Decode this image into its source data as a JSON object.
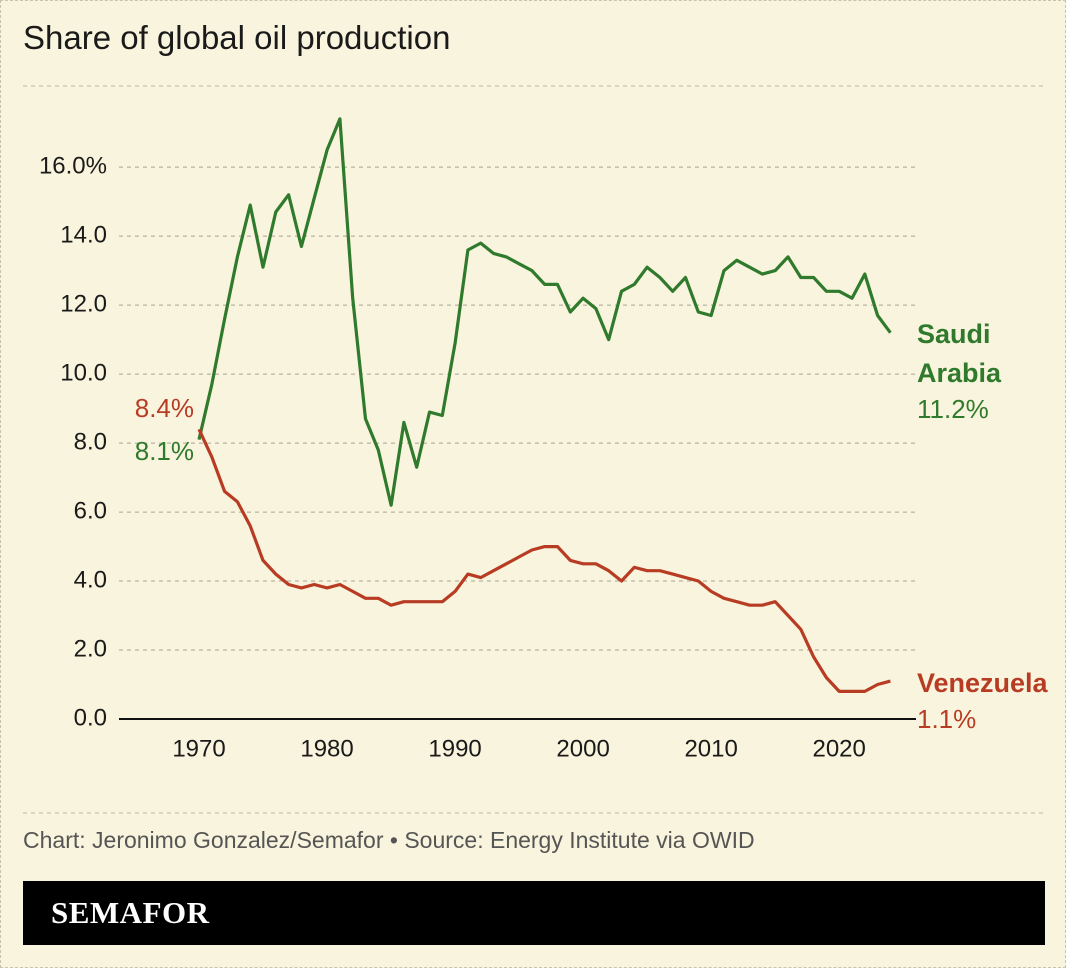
{
  "title": "Share of global oil production",
  "source": "Chart: Jeronimo Gonzalez/Semafor • Source: Energy Institute via OWID",
  "brand": "SEMAFOR",
  "chart_data": {
    "type": "line",
    "x": [
      1970,
      1971,
      1972,
      1973,
      1974,
      1975,
      1976,
      1977,
      1978,
      1979,
      1980,
      1981,
      1982,
      1983,
      1984,
      1985,
      1986,
      1987,
      1988,
      1989,
      1990,
      1991,
      1992,
      1993,
      1994,
      1995,
      1996,
      1997,
      1998,
      1999,
      2000,
      2001,
      2002,
      2003,
      2004,
      2005,
      2006,
      2007,
      2008,
      2009,
      2010,
      2011,
      2012,
      2013,
      2014,
      2015,
      2016,
      2017,
      2018,
      2019,
      2020,
      2021,
      2022,
      2023,
      2024
    ],
    "series": [
      {
        "name": "Saudi Arabia",
        "color": "#2f7a2c",
        "values": [
          8.1,
          9.7,
          11.6,
          13.4,
          14.9,
          13.1,
          14.7,
          15.2,
          13.7,
          15.1,
          16.5,
          17.4,
          12.2,
          8.7,
          7.8,
          6.2,
          8.6,
          7.3,
          8.9,
          8.8,
          10.9,
          13.6,
          13.8,
          13.5,
          13.4,
          13.2,
          13.0,
          12.6,
          12.6,
          11.8,
          12.2,
          11.9,
          11.0,
          12.4,
          12.6,
          13.1,
          12.8,
          12.4,
          12.8,
          11.8,
          11.7,
          13.0,
          13.3,
          13.1,
          12.9,
          13.0,
          13.4,
          12.8,
          12.8,
          12.4,
          12.4,
          12.2,
          12.9,
          11.7,
          11.2
        ],
        "value_labels": [
          "8.1%",
          null,
          null,
          null,
          null,
          null,
          null,
          null,
          null,
          null,
          null,
          null,
          null,
          null,
          null,
          null,
          null,
          null,
          null,
          null,
          null,
          null,
          null,
          null,
          null,
          null,
          null,
          null,
          null,
          null,
          null,
          null,
          null,
          null,
          null,
          null,
          null,
          null,
          null,
          null,
          null,
          null,
          null,
          null,
          null,
          null,
          null,
          null,
          null,
          null,
          null,
          null,
          null,
          null,
          "11.2%"
        ]
      },
      {
        "name": "Venezuela",
        "color": "#b83c24",
        "values": [
          8.4,
          7.6,
          6.6,
          6.3,
          5.6,
          4.6,
          4.2,
          3.9,
          3.8,
          3.9,
          3.8,
          3.9,
          3.7,
          3.5,
          3.5,
          3.3,
          3.4,
          3.4,
          3.4,
          3.4,
          3.7,
          4.2,
          4.1,
          4.3,
          4.5,
          4.7,
          4.9,
          5.0,
          5.0,
          4.6,
          4.5,
          4.5,
          4.3,
          4.0,
          4.4,
          4.3,
          4.3,
          4.2,
          4.1,
          4.0,
          3.7,
          3.5,
          3.4,
          3.3,
          3.3,
          3.4,
          3.0,
          2.6,
          1.8,
          1.2,
          0.8,
          0.8,
          0.8,
          1.0,
          1.1
        ],
        "value_labels": [
          "8.4%",
          null,
          null,
          null,
          null,
          null,
          null,
          null,
          null,
          null,
          null,
          null,
          null,
          null,
          null,
          null,
          null,
          null,
          null,
          null,
          null,
          null,
          null,
          null,
          null,
          null,
          null,
          null,
          null,
          null,
          null,
          null,
          null,
          null,
          null,
          null,
          null,
          null,
          null,
          null,
          null,
          null,
          null,
          null,
          null,
          null,
          null,
          null,
          null,
          null,
          null,
          null,
          null,
          null,
          "1.1%"
        ]
      }
    ],
    "xlim": [
      1963.75,
      2026
    ],
    "xticks": [
      1970,
      1980,
      1990,
      2000,
      2010,
      2020
    ],
    "ylim": [
      0,
      17.6
    ],
    "yticks": [
      {
        "value": 0,
        "label": "0.0"
      },
      {
        "value": 2,
        "label": "2.0"
      },
      {
        "value": 4,
        "label": "4.0"
      },
      {
        "value": 6,
        "label": "6.0"
      },
      {
        "value": 8,
        "label": "8.0"
      },
      {
        "value": 10,
        "label": "10.0"
      },
      {
        "value": 12,
        "label": "12.0"
      },
      {
        "value": 14,
        "label": "14.0"
      },
      {
        "value": 16,
        "label": "16.0%"
      }
    ],
    "grid": true
  }
}
